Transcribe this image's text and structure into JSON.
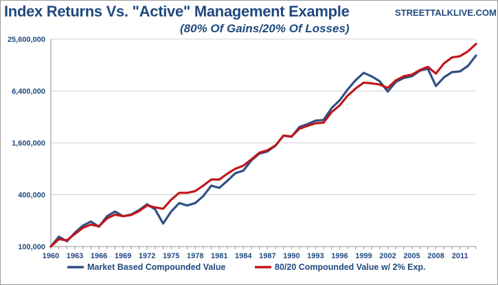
{
  "header": {
    "title": "Index Returns Vs. \"Active\" Management Example",
    "subtitle": "(80% Of Gains/20% Of Losses)",
    "brand": "STREETTALKLIVE.COM"
  },
  "colors": {
    "market": "#2f4f86",
    "active": "#c0161a",
    "text": "#1f497d",
    "grid": "#d0d0d0"
  },
  "chart_data": {
    "type": "line",
    "title": "Index Returns Vs. \"Active\" Management Example",
    "subtitle": "(80% Of Gains/20% Of Losses)",
    "xlabel": "",
    "ylabel": "",
    "y_scale": "log",
    "ylim": [
      100000,
      25600000
    ],
    "y_ticks": [
      100000,
      400000,
      1600000,
      6400000,
      25600000
    ],
    "y_tick_labels": [
      "100,000",
      "400,000",
      "1,600,000",
      "6,400,000",
      "25,600,000"
    ],
    "x_tick_labels": [
      "1960",
      "1963",
      "1966",
      "1969",
      "1972",
      "1975",
      "1978",
      "1981",
      "1984",
      "1987",
      "1990",
      "1993",
      "1996",
      "1999",
      "2002",
      "2005",
      "2008",
      "2011"
    ],
    "grid": true,
    "legend_position": "bottom",
    "x": [
      1960,
      1961,
      1962,
      1963,
      1964,
      1965,
      1966,
      1967,
      1968,
      1969,
      1970,
      1971,
      1972,
      1973,
      1974,
      1975,
      1976,
      1977,
      1978,
      1979,
      1980,
      1981,
      1982,
      1983,
      1984,
      1985,
      1986,
      1987,
      1988,
      1989,
      1990,
      1991,
      1992,
      1993,
      1994,
      1995,
      1996,
      1997,
      1998,
      1999,
      2000,
      2001,
      2002,
      2003,
      2004,
      2005,
      2006,
      2007,
      2008,
      2009,
      2010,
      2011,
      2012,
      2013
    ],
    "series": [
      {
        "name": "Market Based Compounded Value",
        "values": [
          100000,
          130000,
          115000,
          145000,
          175000,
          195000,
          170000,
          225000,
          255000,
          225000,
          235000,
          265000,
          310000,
          270000,
          185000,
          255000,
          320000,
          300000,
          320000,
          385000,
          510000,
          480000,
          580000,
          710000,
          760000,
          1000000,
          1200000,
          1270000,
          1480000,
          1940000,
          1880000,
          2450000,
          2640000,
          2900000,
          2950000,
          4050000,
          4990000,
          6650000,
          8550000,
          10400000,
          9450000,
          8300000,
          6300000,
          8150000,
          9050000,
          9500000,
          11000000,
          11600000,
          7300000,
          9200000,
          10600000,
          10800000,
          12500000,
          16500000
        ]
      },
      {
        "name": "80/20 Compounded Value w/ 2% Exp.",
        "values": [
          100000,
          122000,
          118000,
          140000,
          165000,
          180000,
          172000,
          212000,
          235000,
          225000,
          232000,
          258000,
          300000,
          285000,
          275000,
          350000,
          420000,
          420000,
          440000,
          510000,
          600000,
          600000,
          700000,
          800000,
          870000,
          1030000,
          1230000,
          1310000,
          1490000,
          1940000,
          1900000,
          2330000,
          2520000,
          2700000,
          2750000,
          3650000,
          4350000,
          5650000,
          6850000,
          8000000,
          7850000,
          7600000,
          6950000,
          8500000,
          9500000,
          9900000,
          11200000,
          12200000,
          10200000,
          13400000,
          15700000,
          16200000,
          18500000,
          22500000
        ]
      }
    ]
  }
}
